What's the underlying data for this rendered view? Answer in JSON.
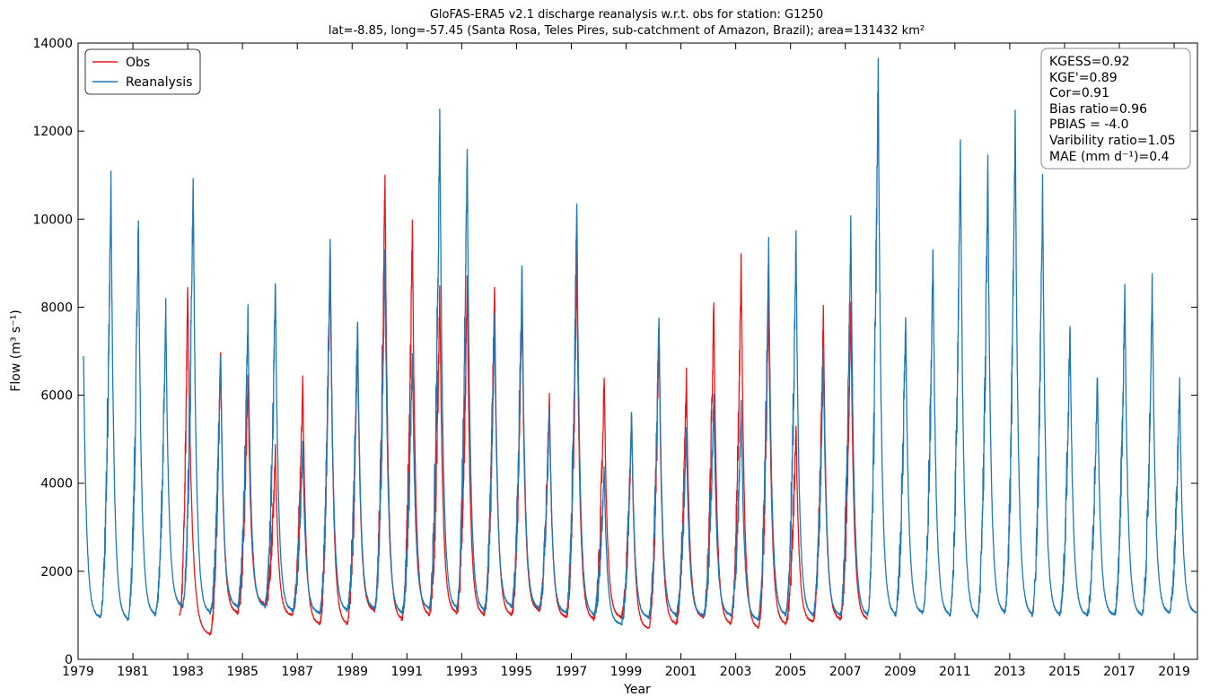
{
  "chart_data": {
    "type": "line",
    "title": "GloFAS-ERA5 v2.1 discharge reanalysis w.r.t. obs for station: G1250",
    "subtitle": "lat=-8.85, long=-57.45 (Santa Rosa, Teles Pires, sub-catchment of Amazon, Brazil); area=131432 km²",
    "xlabel": "Year",
    "ylabel": "Flow (m³ s⁻¹)",
    "xlim": [
      1979,
      2019.85
    ],
    "ylim": [
      0,
      14000
    ],
    "x_ticks": [
      "1979",
      "1981",
      "1983",
      "1985",
      "1987",
      "1989",
      "1991",
      "1993",
      "1995",
      "1997",
      "1999",
      "2001",
      "2003",
      "2005",
      "2007",
      "2009",
      "2011",
      "2013",
      "2015",
      "2017",
      "2019"
    ],
    "y_ticks": [
      "0",
      "2000",
      "4000",
      "6000",
      "8000",
      "10000",
      "12000",
      "14000"
    ],
    "grid": false,
    "legend_position": "top-left",
    "series": [
      {
        "name": "Obs",
        "color": "#e31a1c",
        "peaks": [
          [
            1983.0,
            8550
          ],
          [
            1984.2,
            7100
          ],
          [
            1985.2,
            6500
          ],
          [
            1986.2,
            4800
          ],
          [
            1987.2,
            6400
          ],
          [
            1988.2,
            9500
          ],
          [
            1989.2,
            7400
          ],
          [
            1990.2,
            11050
          ],
          [
            1991.2,
            9950
          ],
          [
            1992.2,
            8500
          ],
          [
            1993.2,
            8600
          ],
          [
            1994.2,
            8500
          ],
          [
            1995.2,
            8350
          ],
          [
            1996.2,
            6050
          ],
          [
            1997.2,
            9200
          ],
          [
            1998.2,
            6500
          ],
          [
            1999.2,
            5600
          ],
          [
            2000.2,
            7600
          ],
          [
            2001.2,
            6500
          ],
          [
            2002.2,
            8250
          ],
          [
            2003.2,
            9150
          ],
          [
            2004.2,
            8400
          ],
          [
            2005.2,
            5350
          ],
          [
            2006.2,
            7900
          ],
          [
            2007.2,
            8200
          ]
        ],
        "troughs": [
          [
            1982.7,
            1000
          ],
          [
            1983.8,
            550
          ],
          [
            1984.8,
            1050
          ],
          [
            1985.8,
            1250
          ],
          [
            1986.8,
            1000
          ],
          [
            1987.8,
            800
          ],
          [
            1988.8,
            800
          ],
          [
            1989.8,
            1100
          ],
          [
            1990.8,
            900
          ],
          [
            1991.8,
            1000
          ],
          [
            1992.8,
            1050
          ],
          [
            1993.8,
            1000
          ],
          [
            1994.8,
            1000
          ],
          [
            1995.8,
            1100
          ],
          [
            1996.8,
            950
          ],
          [
            1997.8,
            900
          ],
          [
            1998.8,
            950
          ],
          [
            1999.8,
            700
          ],
          [
            2000.8,
            800
          ],
          [
            2001.8,
            950
          ],
          [
            2002.8,
            800
          ],
          [
            2003.8,
            700
          ],
          [
            2004.8,
            800
          ],
          [
            2005.8,
            850
          ],
          [
            2006.8,
            900
          ],
          [
            2007.8,
            900
          ]
        ]
      },
      {
        "name": "Reanalysis",
        "color": "#1f77b4",
        "peaks": [
          [
            1979.2,
            6800
          ],
          [
            1980.2,
            10900
          ],
          [
            1981.2,
            10100
          ],
          [
            1982.2,
            8050
          ],
          [
            1983.2,
            11000
          ],
          [
            1984.2,
            7000
          ],
          [
            1985.2,
            7900
          ],
          [
            1986.2,
            8650
          ],
          [
            1987.2,
            4900
          ],
          [
            1988.2,
            9600
          ],
          [
            1989.2,
            7800
          ],
          [
            1990.2,
            9300
          ],
          [
            1991.2,
            7050
          ],
          [
            1992.2,
            12550
          ],
          [
            1993.2,
            11700
          ],
          [
            1994.2,
            7800
          ],
          [
            1995.2,
            9050
          ],
          [
            1996.2,
            5800
          ],
          [
            1997.2,
            10550
          ],
          [
            1998.2,
            4350
          ],
          [
            1999.2,
            5650
          ],
          [
            2000.2,
            7900
          ],
          [
            2001.2,
            5200
          ],
          [
            2002.2,
            6000
          ],
          [
            2003.2,
            5850
          ],
          [
            2004.2,
            9600
          ],
          [
            2005.2,
            9650
          ],
          [
            2006.2,
            7000
          ],
          [
            2007.2,
            10100
          ],
          [
            2008.2,
            13700
          ],
          [
            2009.2,
            7850
          ],
          [
            2010.2,
            9300
          ],
          [
            2011.2,
            11800
          ],
          [
            2012.2,
            11250
          ],
          [
            2013.2,
            12300
          ],
          [
            2014.2,
            10800
          ],
          [
            2015.2,
            7700
          ],
          [
            2016.2,
            6500
          ],
          [
            2017.2,
            8500
          ],
          [
            2018.2,
            8700
          ],
          [
            2019.2,
            6400
          ]
        ],
        "troughs": [
          [
            1979.8,
            950
          ],
          [
            1980.8,
            900
          ],
          [
            1981.8,
            1000
          ],
          [
            1982.8,
            1200
          ],
          [
            1983.8,
            1050
          ],
          [
            1984.8,
            1200
          ],
          [
            1985.8,
            1200
          ],
          [
            1986.8,
            1100
          ],
          [
            1987.8,
            1050
          ],
          [
            1988.8,
            1100
          ],
          [
            1989.8,
            1150
          ],
          [
            1990.8,
            1050
          ],
          [
            1991.8,
            1150
          ],
          [
            1992.8,
            1150
          ],
          [
            1993.8,
            1100
          ],
          [
            1994.8,
            1200
          ],
          [
            1995.8,
            1150
          ],
          [
            1996.8,
            1050
          ],
          [
            1997.8,
            1000
          ],
          [
            1998.8,
            800
          ],
          [
            1999.8,
            950
          ],
          [
            2000.8,
            1000
          ],
          [
            2001.8,
            1000
          ],
          [
            2002.8,
            1000
          ],
          [
            2003.8,
            900
          ],
          [
            2004.8,
            1000
          ],
          [
            2005.8,
            1000
          ],
          [
            2006.8,
            1000
          ],
          [
            2007.8,
            1000
          ],
          [
            2008.8,
            1000
          ],
          [
            2009.8,
            1050
          ],
          [
            2010.8,
            1000
          ],
          [
            2011.8,
            950
          ],
          [
            2012.8,
            1050
          ],
          [
            2013.8,
            1000
          ],
          [
            2014.8,
            1000
          ],
          [
            2015.8,
            1000
          ],
          [
            2016.8,
            1000
          ],
          [
            2017.8,
            1000
          ],
          [
            2018.8,
            1050
          ],
          [
            2019.8,
            1050
          ]
        ]
      }
    ],
    "stats": [
      "KGESS=0.92",
      "KGE'=0.89",
      "Cor=0.91",
      "Bias ratio=0.96",
      "PBIAS = -4.0",
      "Varibility ratio=1.05",
      "MAE (mm d⁻¹)=0.4"
    ]
  }
}
